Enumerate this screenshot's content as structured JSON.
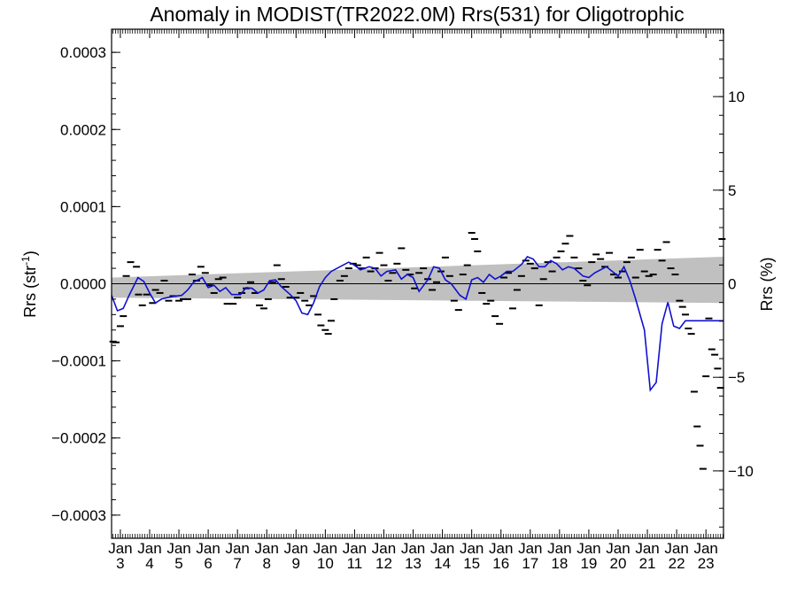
{
  "chart_data": {
    "type": "line",
    "title": "Anomaly in MODIST(TR2022.0M) Rrs(531) for Oligotrophic",
    "ylabel_left": "Rrs (str",
    "ylabel_left_exp": "-1",
    "ylabel_left_close": ")",
    "ylabel_right": "Rrs (%)",
    "xlim": [
      2002.7,
      2023.6
    ],
    "ylim": [
      -0.00033,
      0.00033
    ],
    "ylim_right": [
      -13.6,
      13.6
    ],
    "y_ticks": [
      {
        "v": 0.0003,
        "label": "0.0003"
      },
      {
        "v": 0.0002,
        "label": "0.0002"
      },
      {
        "v": 0.0001,
        "label": "0.0001"
      },
      {
        "v": 0.0,
        "label": "0.0000"
      },
      {
        "v": -0.0001,
        "label": "−0.0001"
      },
      {
        "v": -0.0002,
        "label": "−0.0002"
      },
      {
        "v": -0.0003,
        "label": "−0.0003"
      }
    ],
    "y_ticks_right": [
      {
        "v": 10,
        "label": "10"
      },
      {
        "v": 5,
        "label": "5"
      },
      {
        "v": 0,
        "label": "0"
      },
      {
        "v": -5,
        "label": "−5"
      },
      {
        "v": -10,
        "label": "−10"
      }
    ],
    "x_ticks": [
      {
        "year": 2003,
        "month": "Jan",
        "short": "3"
      },
      {
        "year": 2004,
        "month": "Jan",
        "short": "4"
      },
      {
        "year": 2005,
        "month": "Jan",
        "short": "5"
      },
      {
        "year": 2006,
        "month": "Jan",
        "short": "6"
      },
      {
        "year": 2007,
        "month": "Jan",
        "short": "7"
      },
      {
        "year": 2008,
        "month": "Jan",
        "short": "8"
      },
      {
        "year": 2009,
        "month": "Jan",
        "short": "9"
      },
      {
        "year": 2010,
        "month": "Jan",
        "short": "10"
      },
      {
        "year": 2011,
        "month": "Jan",
        "short": "11"
      },
      {
        "year": 2012,
        "month": "Jan",
        "short": "12"
      },
      {
        "year": 2013,
        "month": "Jan",
        "short": "13"
      },
      {
        "year": 2014,
        "month": "Jan",
        "short": "14"
      },
      {
        "year": 2015,
        "month": "Jan",
        "short": "15"
      },
      {
        "year": 2016,
        "month": "Jan",
        "short": "16"
      },
      {
        "year": 2017,
        "month": "Jan",
        "short": "17"
      },
      {
        "year": 2018,
        "month": "Jan",
        "short": "18"
      },
      {
        "year": 2019,
        "month": "Jan",
        "short": "19"
      },
      {
        "year": 2020,
        "month": "Jan",
        "short": "20"
      },
      {
        "year": 2021,
        "month": "Jan",
        "short": "21"
      },
      {
        "year": 2022,
        "month": "Jan",
        "short": "22"
      },
      {
        "year": 2023,
        "month": "Jan",
        "short": "23"
      }
    ],
    "uncertainty_band": {
      "x": [
        2002.7,
        2023.6
      ],
      "upper": [
        8e-06,
        3.5e-05
      ],
      "lower": [
        -1.8e-05,
        -2.5e-05
      ]
    },
    "zero_line": 0,
    "grid": false,
    "legend": "none",
    "colors": {
      "smooth": "#1010d0",
      "band": "#c0c0c0",
      "points": "#000000"
    },
    "smoothed_series": {
      "x": [
        2002.7,
        2002.9,
        2003.1,
        2003.3,
        2003.6,
        2003.8,
        2004.0,
        2004.2,
        2004.4,
        2004.6,
        2004.9,
        2005.1,
        2005.3,
        2005.5,
        2005.8,
        2006.0,
        2006.2,
        2006.4,
        2006.6,
        2006.8,
        2007.1,
        2007.3,
        2007.5,
        2007.7,
        2007.9,
        2008.1,
        2008.3,
        2008.5,
        2008.8,
        2009.0,
        2009.2,
        2009.4,
        2009.6,
        2009.8,
        2010.0,
        2010.2,
        2010.4,
        2010.6,
        2010.8,
        2011.0,
        2011.2,
        2011.5,
        2011.7,
        2011.9,
        2012.1,
        2012.4,
        2012.6,
        2012.8,
        2013.0,
        2013.2,
        2013.5,
        2013.7,
        2013.9,
        2014.1,
        2014.3,
        2014.6,
        2014.8,
        2015.0,
        2015.2,
        2015.4,
        2015.6,
        2015.8,
        2016.0,
        2016.2,
        2016.4,
        2016.7,
        2016.9,
        2017.1,
        2017.3,
        2017.5,
        2017.7,
        2017.9,
        2018.1,
        2018.3,
        2018.5,
        2018.8,
        2019.0,
        2019.2,
        2019.4,
        2019.6,
        2019.8,
        2020.0,
        2020.2,
        2020.4,
        2020.6,
        2020.9,
        2021.1,
        2021.3,
        2021.5,
        2021.7,
        2021.9,
        2022.1,
        2022.3,
        2022.5,
        2022.7,
        2022.9,
        2023.1,
        2023.3,
        2023.6
      ],
      "y": [
        -1.5e-05,
        -3.5e-05,
        -3.2e-05,
        -1.5e-05,
        8e-06,
        3e-06,
        -1.2e-05,
        -2.5e-05,
        -2e-05,
        -1.8e-05,
        -1.6e-05,
        -1.5e-05,
        -8e-06,
        2e-06,
        8e-06,
        -5e-06,
        -2e-06,
        -1e-05,
        -5e-06,
        -1.4e-05,
        -1.4e-05,
        -5e-06,
        -6e-06,
        -1.2e-05,
        -8e-06,
        4e-06,
        5e-06,
        -4e-06,
        -1.4e-05,
        -2.2e-05,
        -3.8e-05,
        -4e-05,
        -2.5e-05,
        -4e-06,
        8e-06,
        1.6e-05,
        2e-05,
        2.4e-05,
        2.8e-05,
        2.4e-05,
        1.8e-05,
        2.2e-05,
        2e-05,
        1e-05,
        1.6e-05,
        1.8e-05,
        6e-06,
        1.2e-05,
        8e-06,
        -1e-05,
        5e-06,
        2.2e-05,
        2e-05,
        5e-06,
        0.0,
        -1.5e-05,
        -2e-05,
        5e-06,
        8e-06,
        2e-06,
        1.2e-05,
        6e-06,
        1e-05,
        1.6e-05,
        1.6e-05,
        2.5e-05,
        3.5e-05,
        3.2e-05,
        2.2e-05,
        2.2e-05,
        3e-05,
        2.6e-05,
        1.8e-05,
        2.2e-05,
        2e-05,
        1e-05,
        8e-06,
        1.4e-05,
        1.8e-05,
        2.2e-05,
        1.6e-05,
        1e-05,
        2.2e-05,
        4e-06,
        -2e-05,
        -6e-05,
        -0.000138,
        -0.000128,
        -5.2e-05,
        -2.4e-05,
        -5.5e-05,
        -5.8e-05,
        -4.8e-05,
        -4.8e-05,
        -4.8e-05,
        -4.8e-05,
        -4.8e-05,
        -4.8e-05,
        -4.8e-05
      ]
    },
    "monthly_points": {
      "x": [
        2002.75,
        2002.85,
        2003.0,
        2003.1,
        2003.2,
        2003.35,
        2003.55,
        2003.62,
        2003.75,
        2003.9,
        2004.1,
        2004.2,
        2004.35,
        2004.5,
        2004.65,
        2004.8,
        2005.0,
        2005.15,
        2005.3,
        2005.45,
        2005.6,
        2005.75,
        2005.9,
        2006.05,
        2006.2,
        2006.35,
        2006.5,
        2006.65,
        2006.85,
        2007.0,
        2007.15,
        2007.3,
        2007.45,
        2007.6,
        2007.75,
        2007.9,
        2008.05,
        2008.2,
        2008.35,
        2008.5,
        2008.65,
        2008.8,
        2009.0,
        2009.15,
        2009.3,
        2009.45,
        2009.6,
        2009.75,
        2009.85,
        2010.0,
        2010.1,
        2010.2,
        2010.3,
        2010.5,
        2010.65,
        2010.8,
        2010.95,
        2011.1,
        2011.25,
        2011.4,
        2011.55,
        2011.7,
        2011.85,
        2012.0,
        2012.15,
        2012.3,
        2012.45,
        2012.6,
        2012.75,
        2012.9,
        2013.05,
        2013.2,
        2013.35,
        2013.5,
        2013.65,
        2013.8,
        2013.95,
        2014.1,
        2014.25,
        2014.4,
        2014.55,
        2014.7,
        2014.85,
        2015.0,
        2015.1,
        2015.2,
        2015.35,
        2015.5,
        2015.65,
        2015.8,
        2015.95,
        2016.1,
        2016.25,
        2016.4,
        2016.55,
        2016.7,
        2016.85,
        2017.0,
        2017.15,
        2017.3,
        2017.45,
        2017.6,
        2017.75,
        2017.9,
        2018.05,
        2018.2,
        2018.35,
        2018.5,
        2018.65,
        2018.8,
        2018.95,
        2019.1,
        2019.25,
        2019.4,
        2019.55,
        2019.7,
        2019.85,
        2020.0,
        2020.15,
        2020.3,
        2020.45,
        2020.6,
        2020.75,
        2020.9,
        2021.05,
        2021.2,
        2021.35,
        2021.5,
        2021.65,
        2021.8,
        2021.95,
        2022.1,
        2022.2,
        2022.3,
        2022.4,
        2022.5,
        2022.6,
        2022.7,
        2022.8,
        2022.9,
        2023.0,
        2023.1,
        2023.2,
        2023.3,
        2023.4,
        2023.5,
        2023.55
      ],
      "y": [
        -7.5e-05,
        -7.6e-05,
        -5.5e-05,
        -4.2e-05,
        1e-05,
        2.8e-05,
        2.2e-05,
        -1.4e-05,
        -2.8e-05,
        -1.4e-05,
        -2.5e-05,
        -8e-06,
        -1.2e-05,
        4e-06,
        -2.2e-05,
        -1.6e-05,
        -2.2e-05,
        -2e-05,
        -2e-05,
        1.2e-05,
        4e-06,
        2.2e-05,
        1.4e-05,
        -2e-06,
        -1.2e-05,
        6e-06,
        8e-06,
        -2.6e-05,
        -2.6e-05,
        -1.8e-05,
        -1.2e-05,
        -6e-06,
        2e-06,
        -1.2e-05,
        -2.8e-05,
        -3.2e-05,
        -2e-05,
        2e-06,
        2.4e-05,
        6e-06,
        -4e-06,
        -1.8e-05,
        -1.8e-05,
        -1.2e-05,
        -2.2e-05,
        -2.8e-05,
        -1.6e-05,
        -4e-05,
        -5.4e-05,
        -6e-05,
        -6.5e-05,
        -4.8e-05,
        -2e-05,
        4e-06,
        1e-05,
        2e-05,
        2.6e-05,
        2.4e-05,
        2e-05,
        3.4e-05,
        1.6e-05,
        2e-05,
        4e-05,
        2.4e-05,
        4e-06,
        1.4e-05,
        2.6e-05,
        4.6e-05,
        1.8e-05,
        1.2e-05,
        -6e-06,
        1.4e-05,
        2e-05,
        6e-06,
        -8e-06,
        2e-06,
        1.6e-05,
        3.4e-05,
        1e-05,
        -2.2e-05,
        -3.4e-05,
        1.2e-05,
        2.4e-05,
        6.6e-05,
        5.8e-05,
        4.2e-05,
        -1.2e-05,
        -2.6e-05,
        -2.2e-05,
        -4.2e-05,
        -5.2e-05,
        8e-06,
        1.4e-05,
        -3.2e-05,
        -8e-06,
        1e-05,
        3e-05,
        2.6e-05,
        2e-05,
        -2.8e-05,
        6e-06,
        2.8e-05,
        1.6e-05,
        3.4e-05,
        4.2e-05,
        5.2e-05,
        6.2e-05,
        3.4e-05,
        2e-05,
        4e-06,
        -2e-06,
        2.8e-05,
        3.8e-05,
        3.2e-05,
        2.2e-05,
        4e-05,
        1.2e-05,
        8e-06,
        1.6e-05,
        2.8e-05,
        3.4e-05,
        8e-06,
        4.4e-05,
        1.6e-05,
        1e-05,
        1.2e-05,
        4.4e-05,
        3e-05,
        5.4e-05,
        2e-05,
        1.2e-05,
        -2.2e-05,
        -3e-05,
        -4e-05,
        -5.8e-05,
        -6.5e-05,
        -0.00014,
        -0.000185,
        -0.00021,
        -0.00024,
        -0.00012,
        -4.5e-05,
        -8.5e-05,
        -9.2e-05,
        -0.00011,
        -0.000135,
        5.8e-05
      ]
    }
  }
}
